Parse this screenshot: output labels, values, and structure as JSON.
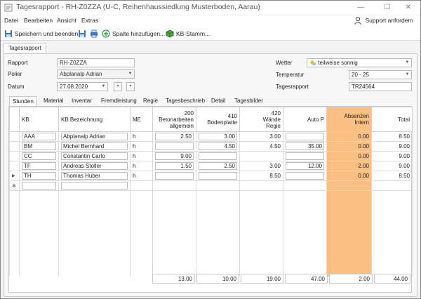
{
  "window": {
    "title": "Tagesrapport - RH-Z0ZZA (U-C, Reihenhaussiedlung Musterboden, Aarau)",
    "minimize": "—",
    "maximize": "☐",
    "close": "✕"
  },
  "menu": {
    "items": [
      "Datei",
      "Bearbeiten",
      "Ansicht",
      "Extras"
    ],
    "support_label": "Support anfordern"
  },
  "toolbar": {
    "save_close": "Speichern und beenden",
    "add_column": "Spalte hinzufügen...",
    "kb_master": "KB-Stamm..."
  },
  "outer_tab": "Tagesrapport",
  "form": {
    "rapport_label": "Rapport",
    "rapport_value": "RH-Z0ZZA",
    "polier_label": "Polier",
    "polier_value": "Abplanalp Adrian",
    "datum_label": "Datum",
    "datum_value": "27.08.2020",
    "wetter_label": "Wetter",
    "wetter_value": "teilweise sonnig",
    "temperatur_label": "Temperatur",
    "temperatur_value": "20 - 25",
    "tagesrapport_label": "Tagesrapport",
    "tagesrapport_value": "TR24564"
  },
  "tabs": [
    "Stunden",
    "Material",
    "Inventar",
    "Fremdleistung",
    "Regie",
    "Tagesbeschrieb",
    "Detail",
    "Tagesbilder"
  ],
  "grid": {
    "headers": {
      "kb": "KB",
      "bez": "KB Bezeichnung",
      "me": "ME",
      "c200": "200\nBetonarbeiten\nallgemein",
      "c410": "410\nBodenplatte",
      "c420": "420\nWände\nRegie",
      "autop": "Auto P",
      "absenzen": "Absenzen\nIntern",
      "total": "Total"
    },
    "rows": [
      {
        "kb": "AAA",
        "bez": "Abplanalp Adrian",
        "me": "h",
        "c200": "2.50",
        "c410": "3.00",
        "c420": "3.00",
        "autop": "",
        "absenzen": "0.00",
        "total": "8.50"
      },
      {
        "kb": "BM",
        "bez": "Michel Bernhard",
        "me": "h",
        "c200": "",
        "c410": "4.50",
        "c420": "4.50",
        "autop": "35.00",
        "absenzen": "0.00",
        "total": "9.00"
      },
      {
        "kb": "CC",
        "bez": "Constantin Carlo",
        "me": "h",
        "c200": "9.00",
        "c410": "",
        "c420": "",
        "autop": "",
        "absenzen": "0.00",
        "total": "9.00"
      },
      {
        "kb": "TF",
        "bez": "Andreas Stoller",
        "me": "h",
        "c200": "1.50",
        "c410": "2.50",
        "c420": "3.00",
        "autop": "12.00",
        "absenzen": "2.00",
        "total": "9.00"
      },
      {
        "kb": "TH",
        "bez": "Thomas Huber",
        "me": "h",
        "c200": "",
        "c410": "",
        "c420": "8.50",
        "autop": "",
        "absenzen": "0.00",
        "total": "8.50"
      }
    ],
    "totals": {
      "c200": "13.00",
      "c410": "10.00",
      "c420": "19.00",
      "autop": "47.00",
      "absenzen": "2.00",
      "total": "44.00"
    }
  }
}
